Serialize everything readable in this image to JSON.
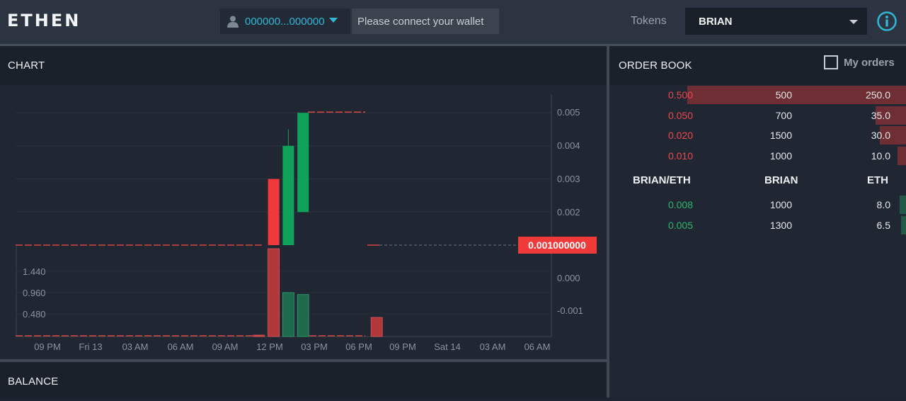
{
  "header": {
    "logo": "ETHEN",
    "wallet_address": "000000...000000",
    "connect_text": "Please connect your wallet",
    "tokens_label": "Tokens",
    "selected_token": "BRIAN"
  },
  "chart_panel": {
    "title": "CHART"
  },
  "balance_panel": {
    "title": "BALANCE"
  },
  "order_book": {
    "title": "ORDER BOOK",
    "my_orders_label": "My orders",
    "columns": [
      "BRIAN/ETH",
      "BRIAN",
      "ETH"
    ],
    "sell_color": "#e8484e",
    "buy_color": "#2fb36b",
    "sells": [
      {
        "price": "0.500",
        "amount": "500",
        "total": "250.0",
        "depth": 1.0
      },
      {
        "price": "0.050",
        "amount": "700",
        "total": "35.0",
        "depth": 0.14
      },
      {
        "price": "0.020",
        "amount": "1500",
        "total": "30.0",
        "depth": 0.12
      },
      {
        "price": "0.010",
        "amount": "1000",
        "total": "10.0",
        "depth": 0.04
      }
    ],
    "buys": [
      {
        "price": "0.008",
        "amount": "1000",
        "total": "8.0",
        "depth": 0.03
      },
      {
        "price": "0.005",
        "amount": "1300",
        "total": "6.5",
        "depth": 0.02
      }
    ]
  },
  "chart_data": {
    "type": "candlestick",
    "x_tick_labels": [
      "09 PM",
      "Fri 13",
      "03 AM",
      "06 AM",
      "09 AM",
      "12 PM",
      "03 PM",
      "06 PM",
      "09 PM",
      "Sat 14",
      "03 AM",
      "06 AM"
    ],
    "price_axis_labels": [
      "0.005",
      "0.004",
      "0.003",
      "0.002",
      "0.000",
      "-0.001"
    ],
    "volume_axis_labels": [
      "1.440",
      "0.960",
      "0.480"
    ],
    "current_price_label": "0.001000000",
    "candles": [
      {
        "slot": 17,
        "open": 0.003,
        "close": 0.001,
        "high": 0.003,
        "low": 0.001,
        "color": "red"
      },
      {
        "slot": 18,
        "open": 0.001,
        "close": 0.004,
        "high": 0.0045,
        "low": 0.001,
        "color": "green"
      },
      {
        "slot": 19,
        "open": 0.002,
        "close": 0.005,
        "high": 0.005,
        "low": 0.002,
        "color": "green"
      }
    ],
    "volumes": [
      {
        "slot": 16,
        "value": 0.02,
        "color": "red"
      },
      {
        "slot": 17,
        "value": 1.84,
        "color": "red"
      },
      {
        "slot": 18,
        "value": 0.92,
        "color": "green"
      },
      {
        "slot": 19,
        "value": 0.88,
        "color": "green"
      },
      {
        "slot": 24,
        "value": 0.4,
        "color": "red"
      }
    ]
  }
}
